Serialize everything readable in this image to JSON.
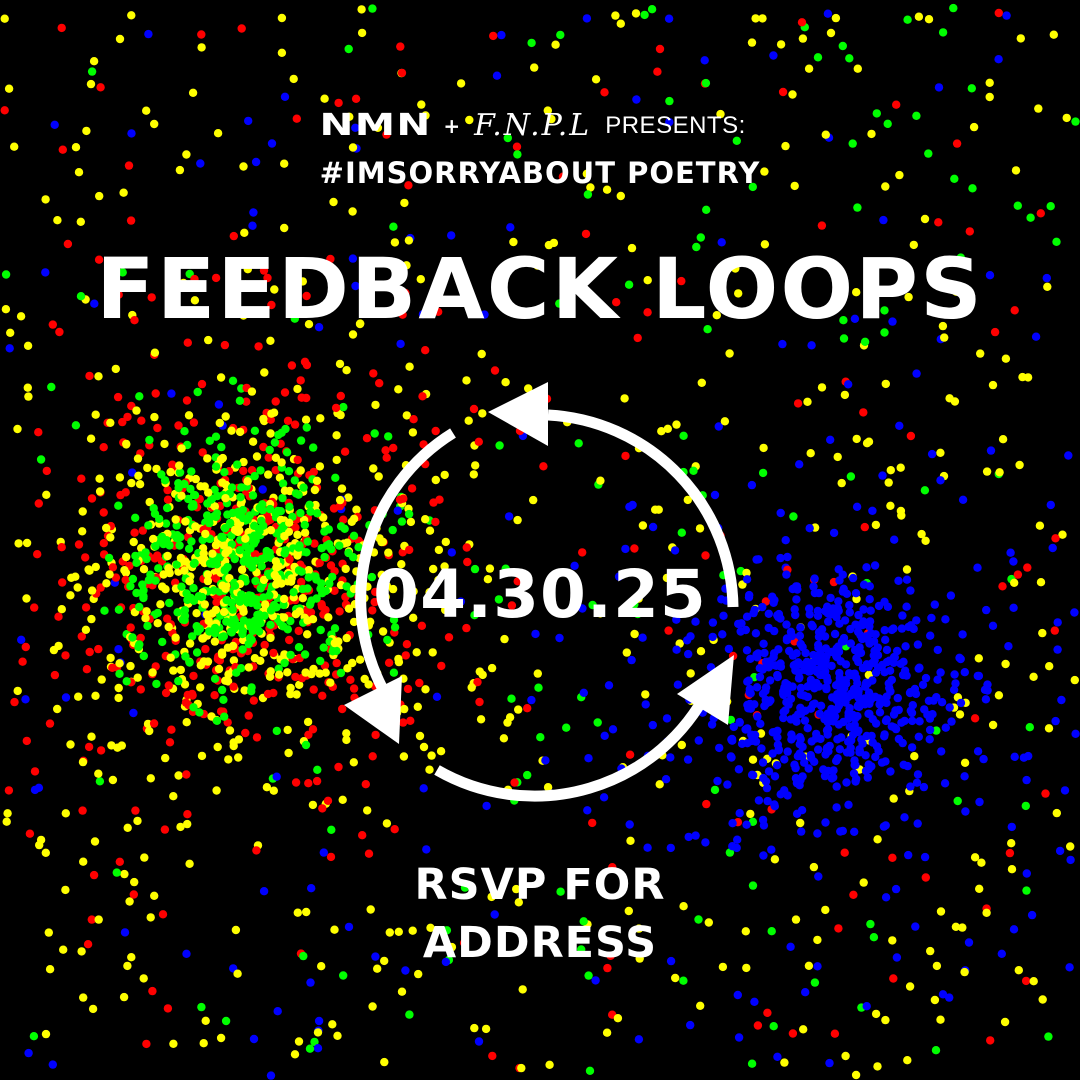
{
  "header": {
    "logo_nmn": "NMN",
    "plus": "+",
    "logo_fnpl": "F.N.P.L",
    "presents": "PRESENTS:"
  },
  "hashtag": "#IMSORRYABOUT POETRY",
  "title": "FEEDBACK LOOPS",
  "date": "04.30.25",
  "rsvp": "RSVP FOR ADDRESS",
  "icons": {
    "loop": "cycle-arrows-icon"
  },
  "colors": {
    "background": "#000000",
    "text": "#ffffff",
    "dot_red": "#ff0000",
    "dot_green": "#00ff00",
    "dot_blue": "#0000ff",
    "dot_yellow": "#ffff00"
  }
}
